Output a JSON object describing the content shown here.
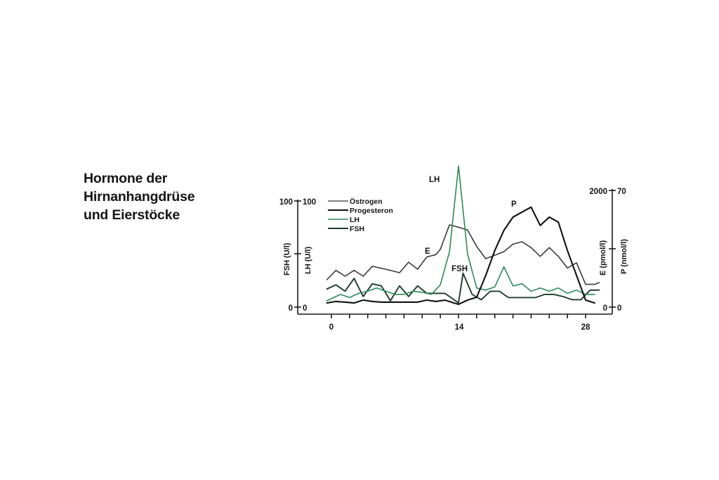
{
  "title": {
    "lines": [
      "Hormone der",
      "Hirnanhangdrüse",
      "und Eierstöcke"
    ]
  },
  "colors": {
    "oestrogen": "#3a3a3a",
    "progesteron": "#111111",
    "lh": "#2e8a58",
    "fsh": "#1d3b2c",
    "axis": "#1a1a1a"
  },
  "chart_data": {
    "type": "line",
    "title": "Hormone der Hirnanhangdrüse und Eierstöcke",
    "xlabel": "",
    "x_ticks": [
      "0",
      "14",
      "28"
    ],
    "xlim": [
      -1,
      30
    ],
    "left_axes": [
      {
        "label": "FSH (U/l)",
        "ticks": [
          "0",
          "100"
        ],
        "ylim": [
          0,
          100
        ]
      },
      {
        "label": "LH (U/l)",
        "ticks": [
          "0",
          "100"
        ],
        "ylim": [
          0,
          100
        ]
      }
    ],
    "right_axes": [
      {
        "label": "E (pmol/l)",
        "ticks": [
          "0",
          "2000"
        ],
        "ylim": [
          0,
          2000
        ]
      },
      {
        "label": "P (nmol/l)",
        "ticks": [
          "0",
          "70"
        ],
        "ylim": [
          0,
          70
        ]
      }
    ],
    "legend": [
      "Östrogen",
      "Progesteron",
      "LH",
      "FSH"
    ],
    "legend_position": "upper left",
    "annotations": [
      "LH",
      "E",
      "FSH",
      "P"
    ],
    "grid": false,
    "series": [
      {
        "name": "Östrogen",
        "axis": "E (pmol/l)",
        "x": [
          -0.5,
          0.5,
          1.5,
          2.5,
          3.5,
          4.5,
          6,
          7.5,
          8.5,
          9.5,
          10.5,
          11.5,
          12,
          13,
          14,
          15,
          16,
          17,
          18,
          19,
          20,
          21,
          22,
          23,
          24,
          25,
          26,
          27,
          28,
          29,
          29.5
        ],
        "values": [
          470,
          630,
          530,
          630,
          530,
          700,
          650,
          590,
          770,
          650,
          860,
          900,
          990,
          1410,
          1370,
          1320,
          1040,
          830,
          890,
          950,
          1080,
          1120,
          1020,
          870,
          1020,
          870,
          670,
          760,
          390,
          390,
          420
        ]
      },
      {
        "name": "Progesteron",
        "axis": "P (nmol/l)",
        "x": [
          -0.5,
          0.5,
          1.5,
          2.5,
          3.5,
          4.5,
          5.5,
          6.5,
          7.5,
          8.5,
          9.5,
          10.5,
          11.5,
          12.5,
          13.5,
          14,
          15,
          16,
          17,
          18,
          19,
          20,
          21,
          22,
          23,
          24,
          25,
          26,
          27,
          28,
          29
        ],
        "values": [
          2.5,
          3.4,
          3.0,
          2.5,
          4.2,
          3.4,
          3.0,
          3.0,
          3.0,
          3.0,
          3.0,
          4.2,
          3.4,
          4.2,
          2.5,
          1.7,
          4.2,
          5.9,
          19,
          34,
          46,
          54,
          57,
          60,
          49,
          54,
          51,
          34,
          19,
          4.2,
          2.5
        ]
      },
      {
        "name": "LH",
        "axis": "LH (U/l)",
        "x": [
          -0.5,
          1,
          2,
          3,
          4,
          5,
          6,
          7,
          8,
          9,
          10,
          11,
          12,
          13,
          14,
          15,
          16,
          17,
          18,
          19,
          20,
          21,
          22,
          23,
          24,
          25,
          26,
          27,
          28,
          29
        ],
        "values": [
          6,
          12,
          9,
          13,
          15,
          18,
          15,
          12,
          12,
          15,
          14,
          12,
          21,
          52,
          133,
          50,
          18,
          16,
          19,
          38,
          20,
          22,
          15,
          18,
          15,
          18,
          13,
          16,
          12,
          12
        ]
      },
      {
        "name": "FSH",
        "axis": "FSH (U/l)",
        "x": [
          -0.5,
          0.5,
          1.5,
          2.5,
          3.5,
          4.5,
          5.5,
          6.5,
          7.5,
          8.5,
          9.5,
          10.5,
          11.5,
          12.5,
          13.5,
          14,
          14.5,
          15.5,
          16.5,
          17.5,
          18.5,
          19.5,
          20.5,
          21.5,
          22.5,
          23.5,
          24.5,
          25.5,
          26.5,
          27.5,
          28.5,
          29.5
        ],
        "values": [
          17,
          21,
          15,
          27,
          10,
          22,
          20,
          6,
          20,
          10,
          20,
          13,
          13,
          13,
          7,
          4,
          32,
          12,
          7,
          15,
          15,
          9,
          9,
          9,
          9,
          12,
          12,
          10,
          7,
          7,
          16,
          16
        ]
      }
    ]
  },
  "axis_labels": {
    "fsh": "FSH (U/l)",
    "lh": "LH (U/l)",
    "e": "E (pmol/l)",
    "p": "P (nmol/l)",
    "left_top_outer": "100",
    "left_top_inner": "100",
    "left_zero_outer": "0",
    "left_zero_inner": "0",
    "right_top_e": "2000",
    "right_top_p": "70",
    "right_zero_e": "0",
    "right_zero_p": "0"
  },
  "x_ticks": {
    "t0": "0",
    "t14": "14",
    "t28": "28"
  },
  "legend": {
    "oestrogen": "Östrogen",
    "progesteron": "Progesteron",
    "lh": "LH",
    "fsh": "FSH"
  },
  "annotations": {
    "lh": "LH",
    "e": "E",
    "fsh": "FSH",
    "p": "P"
  }
}
